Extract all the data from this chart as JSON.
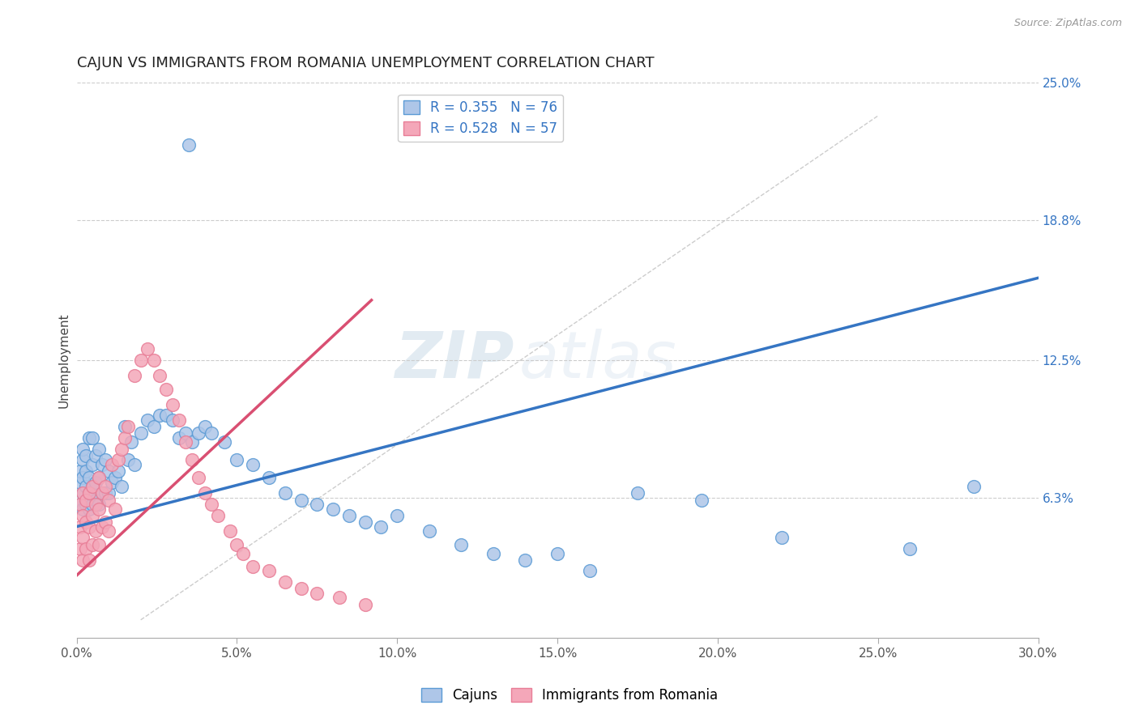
{
  "title": "CAJUN VS IMMIGRANTS FROM ROMANIA UNEMPLOYMENT CORRELATION CHART",
  "source": "Source: ZipAtlas.com",
  "ylabel": "Unemployment",
  "x_min": 0.0,
  "x_max": 0.3,
  "y_min": 0.0,
  "y_max": 0.25,
  "right_ytick_labels": [
    "6.3%",
    "12.5%",
    "18.8%",
    "25.0%"
  ],
  "right_ytick_values": [
    0.063,
    0.125,
    0.188,
    0.25
  ],
  "x_tick_labels": [
    "0.0%",
    "5.0%",
    "10.0%",
    "15.0%",
    "20.0%",
    "25.0%",
    "30.0%"
  ],
  "x_tick_values": [
    0.0,
    0.05,
    0.1,
    0.15,
    0.2,
    0.25,
    0.3
  ],
  "legend_label1": "R = 0.355   N = 76",
  "legend_label2": "R = 0.528   N = 57",
  "cajun_color": "#aec6e8",
  "romania_color": "#f4a7b9",
  "cajun_edge_color": "#5b9bd5",
  "romania_edge_color": "#e87d96",
  "trend_blue_color": "#3575c3",
  "trend_pink_color": "#d94f72",
  "ref_line_color": "#c0c0c0",
  "watermark_zip": "ZIP",
  "watermark_atlas": "atlas",
  "title_fontsize": 13,
  "axis_label_fontsize": 11,
  "tick_fontsize": 11,
  "legend_fontsize": 12,
  "cajun_scatter_x": [
    0.001,
    0.001,
    0.001,
    0.002,
    0.002,
    0.002,
    0.002,
    0.002,
    0.003,
    0.003,
    0.003,
    0.003,
    0.004,
    0.004,
    0.004,
    0.004,
    0.005,
    0.005,
    0.005,
    0.005,
    0.006,
    0.006,
    0.006,
    0.007,
    0.007,
    0.007,
    0.008,
    0.008,
    0.009,
    0.009,
    0.01,
    0.01,
    0.011,
    0.012,
    0.013,
    0.014,
    0.015,
    0.016,
    0.017,
    0.018,
    0.02,
    0.022,
    0.024,
    0.026,
    0.028,
    0.03,
    0.032,
    0.034,
    0.036,
    0.038,
    0.04,
    0.042,
    0.046,
    0.05,
    0.055,
    0.06,
    0.065,
    0.07,
    0.075,
    0.08,
    0.085,
    0.09,
    0.095,
    0.1,
    0.11,
    0.12,
    0.13,
    0.14,
    0.15,
    0.16,
    0.175,
    0.195,
    0.22,
    0.26,
    0.28,
    0.035
  ],
  "cajun_scatter_y": [
    0.06,
    0.07,
    0.075,
    0.058,
    0.065,
    0.072,
    0.08,
    0.085,
    0.06,
    0.068,
    0.075,
    0.082,
    0.058,
    0.065,
    0.072,
    0.09,
    0.06,
    0.068,
    0.078,
    0.09,
    0.062,
    0.07,
    0.082,
    0.06,
    0.072,
    0.085,
    0.065,
    0.078,
    0.065,
    0.08,
    0.065,
    0.075,
    0.07,
    0.072,
    0.075,
    0.068,
    0.095,
    0.08,
    0.088,
    0.078,
    0.092,
    0.098,
    0.095,
    0.1,
    0.1,
    0.098,
    0.09,
    0.092,
    0.088,
    0.092,
    0.095,
    0.092,
    0.088,
    0.08,
    0.078,
    0.072,
    0.065,
    0.062,
    0.06,
    0.058,
    0.055,
    0.052,
    0.05,
    0.055,
    0.048,
    0.042,
    0.038,
    0.035,
    0.038,
    0.03,
    0.065,
    0.062,
    0.045,
    0.04,
    0.068,
    0.222
  ],
  "romania_scatter_x": [
    0.001,
    0.001,
    0.001,
    0.002,
    0.002,
    0.002,
    0.002,
    0.003,
    0.003,
    0.003,
    0.004,
    0.004,
    0.004,
    0.005,
    0.005,
    0.005,
    0.006,
    0.006,
    0.007,
    0.007,
    0.007,
    0.008,
    0.008,
    0.009,
    0.009,
    0.01,
    0.01,
    0.011,
    0.012,
    0.013,
    0.014,
    0.015,
    0.016,
    0.018,
    0.02,
    0.022,
    0.024,
    0.026,
    0.028,
    0.03,
    0.032,
    0.034,
    0.036,
    0.038,
    0.04,
    0.042,
    0.044,
    0.048,
    0.05,
    0.052,
    0.055,
    0.06,
    0.065,
    0.07,
    0.075,
    0.082,
    0.09
  ],
  "romania_scatter_y": [
    0.04,
    0.05,
    0.06,
    0.035,
    0.045,
    0.055,
    0.065,
    0.04,
    0.052,
    0.062,
    0.035,
    0.05,
    0.065,
    0.042,
    0.055,
    0.068,
    0.048,
    0.06,
    0.042,
    0.058,
    0.072,
    0.05,
    0.065,
    0.052,
    0.068,
    0.048,
    0.062,
    0.078,
    0.058,
    0.08,
    0.085,
    0.09,
    0.095,
    0.118,
    0.125,
    0.13,
    0.125,
    0.118,
    0.112,
    0.105,
    0.098,
    0.088,
    0.08,
    0.072,
    0.065,
    0.06,
    0.055,
    0.048,
    0.042,
    0.038,
    0.032,
    0.03,
    0.025,
    0.022,
    0.02,
    0.018,
    0.015
  ],
  "cajun_trend_x": [
    0.0,
    0.3
  ],
  "cajun_trend_y": [
    0.05,
    0.162
  ],
  "romania_trend_x": [
    0.0,
    0.092
  ],
  "romania_trend_y": [
    0.028,
    0.152
  ],
  "ref_line_x": [
    0.02,
    0.25
  ],
  "ref_line_y": [
    0.008,
    0.235
  ]
}
